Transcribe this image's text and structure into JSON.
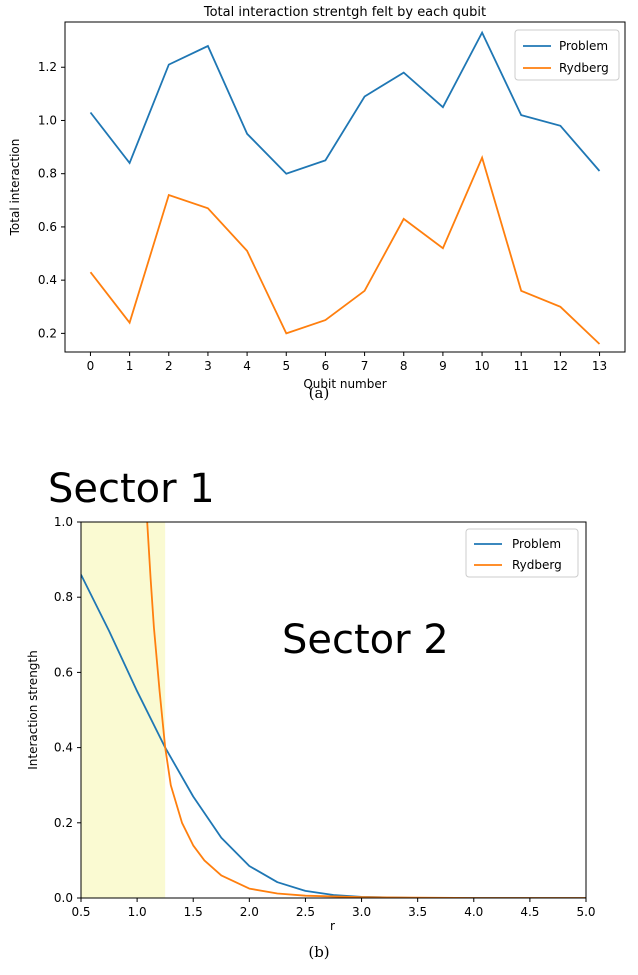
{
  "captions": {
    "a": "(a)",
    "b": "(b)"
  },
  "sector_labels": {
    "sector1": "Sector 1",
    "sector2": "Sector 2"
  },
  "colors": {
    "problem": "#1f77b4",
    "rydberg": "#ff7f0e",
    "shade": "#fafad2"
  },
  "chart_data": [
    {
      "type": "line",
      "title": "Total interaction strentgh felt by each qubit",
      "xlabel": "Qubit number",
      "ylabel": "Total interaction",
      "x": [
        0,
        1,
        2,
        3,
        4,
        5,
        6,
        7,
        8,
        9,
        10,
        11,
        12,
        13
      ],
      "xticks": [
        "0",
        "1",
        "2",
        "3",
        "4",
        "5",
        "6",
        "7",
        "8",
        "9",
        "10",
        "11",
        "12",
        "13"
      ],
      "yticks": [
        "0.2",
        "0.4",
        "0.6",
        "0.8",
        "1.0",
        "1.2"
      ],
      "yticks_values": [
        0.2,
        0.4,
        0.6,
        0.8,
        1.0,
        1.2
      ],
      "xlim": [
        -0.65,
        13.65
      ],
      "ylim": [
        0.13,
        1.37
      ],
      "legend": "top-right",
      "series": [
        {
          "name": "Problem",
          "values": [
            1.03,
            0.84,
            1.21,
            1.28,
            0.95,
            0.8,
            0.85,
            1.09,
            1.18,
            1.05,
            1.33,
            1.02,
            0.98,
            0.81
          ]
        },
        {
          "name": "Rydberg",
          "values": [
            0.43,
            0.24,
            0.72,
            0.67,
            0.51,
            0.2,
            0.25,
            0.36,
            0.63,
            0.52,
            0.86,
            0.36,
            0.3,
            0.16
          ]
        }
      ]
    },
    {
      "type": "line",
      "title": "",
      "xlabel": "r",
      "ylabel": "Interaction strength",
      "xticks": [
        "0.5",
        "1.0",
        "1.5",
        "2.0",
        "2.5",
        "3.0",
        "3.5",
        "4.0",
        "4.5",
        "5.0"
      ],
      "xticks_values": [
        0.5,
        1.0,
        1.5,
        2.0,
        2.5,
        3.0,
        3.5,
        4.0,
        4.5,
        5.0
      ],
      "yticks": [
        "0.0",
        "0.2",
        "0.4",
        "0.6",
        "0.8",
        "1.0"
      ],
      "yticks_values": [
        0.0,
        0.2,
        0.4,
        0.6,
        0.8,
        1.0
      ],
      "xlim": [
        0.5,
        5.0
      ],
      "ylim": [
        0.0,
        1.0
      ],
      "shaded_region_x": [
        0.5,
        1.25
      ],
      "legend": "top-right",
      "series": [
        {
          "name": "Problem",
          "x": [
            0.5,
            0.75,
            1.0,
            1.25,
            1.5,
            1.75,
            2.0,
            2.25,
            2.5,
            2.75,
            3.0,
            3.5,
            4.0,
            4.5,
            5.0
          ],
          "values": [
            0.86,
            0.71,
            0.55,
            0.4,
            0.27,
            0.16,
            0.085,
            0.042,
            0.019,
            0.008,
            0.003,
            0.0,
            0.0,
            0.0,
            0.0
          ]
        },
        {
          "name": "Rydberg",
          "x": [
            1.09,
            1.12,
            1.15,
            1.2,
            1.25,
            1.3,
            1.4,
            1.5,
            1.6,
            1.75,
            2.0,
            2.25,
            2.5,
            3.0,
            3.5,
            4.0,
            4.5,
            5.0
          ],
          "values": [
            1.0,
            0.85,
            0.72,
            0.55,
            0.4,
            0.3,
            0.2,
            0.14,
            0.1,
            0.06,
            0.025,
            0.012,
            0.006,
            0.002,
            0.001,
            0.0,
            0.0,
            0.0
          ]
        }
      ]
    }
  ]
}
